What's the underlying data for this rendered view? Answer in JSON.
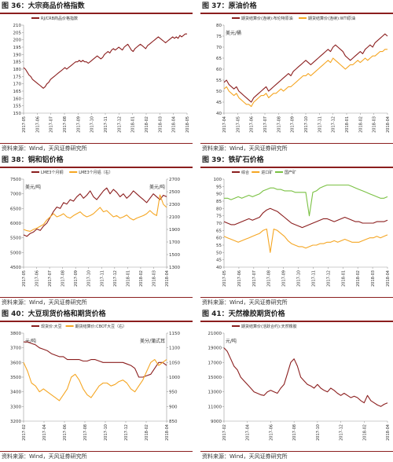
{
  "panels": [
    {
      "title": "图 36：大宗商品价格指数",
      "source": "资料来源：Wind，天风证券研究所",
      "chart_data": {
        "type": "line",
        "x_tick_labels": [
          "2017-05",
          "2017-06",
          "2017-07",
          "2017-08",
          "2017-09",
          "2017-10",
          "2017-11",
          "2017-12",
          "2018-01",
          "2018-02",
          "2018-03",
          "2018-04",
          "2018-05"
        ],
        "left_axis": {
          "min": 150,
          "max": 210,
          "ticks": [
            150,
            155,
            160,
            165,
            170,
            175,
            180,
            185,
            190,
            195,
            200,
            205,
            210
          ],
          "unit": ""
        },
        "series": [
          {
            "name": "RJ/CRB商品价格指数",
            "axis": "left",
            "color": "#8b1e1e",
            "values": [
              181,
              180,
              178,
              176,
              175,
              173,
              172,
              171,
              170,
              169,
              168,
              167,
              168,
              170,
              171,
              173,
              174,
              175,
              176,
              177,
              178,
              179,
              180,
              181,
              180,
              181,
              182,
              183,
              184,
              185,
              185,
              186,
              185,
              186,
              185,
              185,
              184,
              185,
              186,
              187,
              188,
              189,
              188,
              187,
              188,
              190,
              191,
              192,
              191,
              193,
              194,
              193,
              194,
              195,
              194,
              193,
              195,
              196,
              197,
              195,
              193,
              192,
              194,
              195,
              196,
              197,
              196,
              195,
              194,
              196,
              197,
              198,
              199,
              200,
              201,
              202,
              201,
              200,
              199,
              198,
              199,
              200,
              201,
              202,
              201,
              202,
              201,
              203,
              202,
              203,
              204,
              204
            ]
          }
        ]
      }
    },
    {
      "title": "图 37：原油价格",
      "source": "资料来源：Wind，天风证券研究所",
      "chart_data": {
        "type": "line",
        "unit_label": "美元/桶",
        "x_tick_labels": [
          "2017-04",
          "2017-05",
          "2017-06",
          "2017-07",
          "2017-08",
          "2017-09",
          "2017-10",
          "2017-11",
          "2017-12",
          "2018-01",
          "2018-02",
          "2018-03",
          "2018-04"
        ],
        "left_axis": {
          "min": 40,
          "max": 80,
          "ticks": [
            40,
            45,
            50,
            55,
            60,
            65,
            70,
            75,
            80
          ]
        },
        "series": [
          {
            "name": "期货结算价(连续):布伦特原油",
            "axis": "left",
            "color": "#8b1e1e",
            "values": [
              54,
              55,
              53,
              52,
              51,
              52,
              50,
              49,
              48,
              47,
              46,
              45,
              47,
              48,
              49,
              50,
              51,
              52,
              50,
              51,
              52,
              53,
              54,
              55,
              56,
              57,
              58,
              57,
              59,
              60,
              61,
              62,
              63,
              64,
              63,
              62,
              63,
              64,
              65,
              66,
              67,
              68,
              69,
              68,
              70,
              71,
              70,
              69,
              68,
              66,
              65,
              64,
              65,
              66,
              67,
              68,
              67,
              69,
              70,
              71,
              70,
              72,
              73,
              74,
              75,
              76,
              75
            ]
          },
          {
            "name": "期货结算价(连续):WTI原油",
            "axis": "left",
            "color": "#f5a623",
            "values": [
              51,
              52,
              50,
              49,
              48,
              49,
              47,
              46,
              45,
              44,
              44,
              43,
              45,
              46,
              47,
              48,
              48,
              49,
              47,
              48,
              49,
              49,
              50,
              51,
              50,
              51,
              52,
              52,
              53,
              54,
              55,
              56,
              57,
              57,
              58,
              57,
              58,
              59,
              60,
              61,
              62,
              63,
              64,
              63,
              65,
              64,
              63,
              62,
              61,
              60,
              61,
              62,
              62,
              63,
              64,
              63,
              64,
              65,
              64,
              65,
              66,
              66,
              67,
              68,
              68,
              69,
              69
            ]
          }
        ]
      }
    },
    {
      "title": "图 38：铜和铝价格",
      "source": "资料来源：Wind，天风证券研究所",
      "chart_data": {
        "type": "line",
        "left_unit_label": "美元/吨",
        "right_unit_label": "美元/吨",
        "x_tick_labels": [
          "2017-05",
          "2017-06",
          "2017-07",
          "2017-08",
          "2017-09",
          "2017-10",
          "2017-11",
          "2017-12",
          "2018-01",
          "2018-02",
          "2018-03",
          "2018-04"
        ],
        "left_axis": {
          "min": 4500,
          "max": 7500,
          "ticks": [
            4500,
            5000,
            5500,
            6000,
            6500,
            7000,
            7500
          ]
        },
        "right_axis": {
          "min": 1300,
          "max": 2700,
          "ticks": [
            1300,
            1500,
            1700,
            1900,
            2100,
            2300,
            2500,
            2700
          ]
        },
        "series": [
          {
            "name": "LME3个月铜",
            "axis": "left",
            "color": "#8b1e1e",
            "values": [
              5600,
              5550,
              5650,
              5700,
              5800,
              5750,
              5900,
              6000,
              6200,
              6400,
              6550,
              6500,
              6700,
              6650,
              6800,
              6750,
              6900,
              7000,
              6850,
              6950,
              7100,
              6900,
              6800,
              6950,
              7100,
              7200,
              7000,
              7150,
              7050,
              6900,
              7000,
              6850,
              6950,
              7100,
              7000,
              6900,
              6800,
              6700,
              6850,
              7000,
              6900,
              6800,
              6950,
              6900
            ]
          },
          {
            "name": "LME3个月铝（右）",
            "axis": "right",
            "color": "#f5a623",
            "values": [
              1900,
              1880,
              1870,
              1900,
              1920,
              1950,
              1980,
              2050,
              2100,
              2150,
              2100,
              2120,
              2150,
              2100,
              2080,
              2120,
              2150,
              2180,
              2130,
              2100,
              2120,
              2150,
              2200,
              2250,
              2180,
              2200,
              2150,
              2100,
              2120,
              2080,
              2100,
              2130,
              2080,
              2050,
              2080,
              2100,
              2120,
              2150,
              2200,
              2150,
              2120,
              2450,
              2300,
              2250
            ]
          }
        ]
      }
    },
    {
      "title": "图 39：铁矿石价格",
      "source": "资料来源：Wind，天风证券研究所",
      "chart_data": {
        "type": "line",
        "x_tick_labels": [
          "2017-05",
          "2017-06",
          "2017-07",
          "2017-08",
          "2017-09",
          "2017-10",
          "2017-11",
          "2017-12",
          "2018-01",
          "2018-02",
          "2018-03",
          "2018-04"
        ],
        "left_axis": {
          "min": 40,
          "max": 100,
          "ticks": [
            40,
            45,
            50,
            55,
            60,
            65,
            70,
            75,
            80,
            85,
            90,
            95,
            100
          ]
        },
        "series": [
          {
            "name": "综合",
            "axis": "left",
            "color": "#8b1e1e",
            "values": [
              71,
              70,
              69,
              69,
              70,
              71,
              72,
              73,
              72,
              73,
              74,
              77,
              79,
              80,
              79,
              78,
              76,
              74,
              72,
              70,
              69,
              68,
              67,
              68,
              69,
              70,
              71,
              72,
              73,
              73,
              72,
              71,
              72,
              73,
              74,
              73,
              72,
              71,
              71,
              70,
              70,
              70,
              70,
              71,
              71,
              71,
              72
            ]
          },
          {
            "name": "进口矿",
            "axis": "left",
            "color": "#f5a623",
            "values": [
              61,
              60,
              59,
              58,
              57,
              58,
              59,
              60,
              61,
              62,
              63,
              65,
              66,
              50,
              66,
              65,
              63,
              61,
              58,
              56,
              55,
              54,
              54,
              53,
              54,
              55,
              55,
              56,
              56,
              57,
              57,
              58,
              57,
              58,
              59,
              58,
              57,
              57,
              57,
              58,
              59,
              60,
              60,
              61,
              60,
              61,
              62
            ]
          },
          {
            "name": "国产矿",
            "axis": "left",
            "color": "#7ac143",
            "values": [
              87,
              87,
              86,
              87,
              88,
              87,
              88,
              89,
              88,
              89,
              90,
              92,
              93,
              94,
              94,
              93,
              93,
              92,
              92,
              92,
              91,
              91,
              91,
              91,
              75,
              91,
              92,
              94,
              95,
              96,
              96,
              96,
              96,
              96,
              96,
              96,
              95,
              94,
              93,
              92,
              91,
              90,
              89,
              88,
              87,
              87,
              88
            ]
          }
        ]
      }
    },
    {
      "title": "图 40：大豆现货价格和期货价格",
      "source": "资料来源：Wind，天风证券研究所",
      "chart_data": {
        "type": "line",
        "left_unit_label": "元/吨",
        "right_unit_label": "美分/蒲式耳",
        "x_tick_labels": [
          "2017-02",
          "2017-04",
          "2017-06",
          "2017-08",
          "2017-10",
          "2017-12",
          "2018-02",
          "2018-04"
        ],
        "left_axis": {
          "min": 3200,
          "max": 3800,
          "ticks": [
            3200,
            3300,
            3400,
            3500,
            3600,
            3700,
            3800
          ]
        },
        "right_axis": {
          "min": 850,
          "max": 1150,
          "ticks": [
            850,
            900,
            950,
            1000,
            1050,
            1100,
            1150
          ]
        },
        "series": [
          {
            "name": "现货价:大豆",
            "axis": "left",
            "color": "#8b1e1e",
            "values": [
              3740,
              3740,
              3730,
              3720,
              3700,
              3690,
              3680,
              3660,
              3650,
              3640,
              3640,
              3620,
              3620,
              3620,
              3620,
              3610,
              3610,
              3620,
              3620,
              3610,
              3600,
              3600,
              3600,
              3600,
              3600,
              3600,
              3590,
              3580,
              3560,
              3500,
              3500,
              3510,
              3520,
              3560,
              3600,
              3600,
              3580
            ]
          },
          {
            "name": "期货结算价:CBOT大豆（右）",
            "axis": "right",
            "color": "#f5a623",
            "values": [
              1050,
              1020,
              980,
              970,
              950,
              960,
              950,
              940,
              930,
              920,
              940,
              960,
              1000,
              1010,
              990,
              960,
              940,
              930,
              950,
              970,
              980,
              980,
              970,
              975,
              985,
              990,
              980,
              960,
              950,
              970,
              990,
              1020,
              1050,
              1060,
              1040,
              1050,
              1060
            ]
          }
        ]
      }
    },
    {
      "title": "图 41：天然橡胶期货价格",
      "source": "资料来源：Wind，天风证券研究所",
      "chart_data": {
        "type": "line",
        "unit_label": "元/吨",
        "x_tick_labels": [
          "2017-02",
          "2017-04",
          "2017-06",
          "2017-08",
          "2017-10",
          "2017-12",
          "2018-02",
          "2018-04"
        ],
        "left_axis": {
          "min": 9000,
          "max": 21000,
          "ticks": [
            9000,
            11000,
            13000,
            15000,
            17000,
            19000,
            21000
          ]
        },
        "series": [
          {
            "name": "期货结算价(活跃合约):天然橡胶",
            "axis": "left",
            "color": "#8b1e1e",
            "values": [
              19000,
              18500,
              17500,
              16500,
              16000,
              15000,
              14500,
              14000,
              13500,
              13000,
              12800,
              12600,
              12500,
              13000,
              13200,
              13000,
              12800,
              13500,
              14000,
              15500,
              17000,
              17500,
              16500,
              15000,
              14500,
              14000,
              13800,
              13500,
              14000,
              13500,
              13200,
              13000,
              13500,
              13200,
              12800,
              12500,
              12800,
              12500,
              12200,
              12400,
              12200,
              11800,
              11500,
              12500,
              11800,
              11500,
              11200,
              11000,
              11300,
              11500
            ]
          }
        ]
      }
    }
  ]
}
